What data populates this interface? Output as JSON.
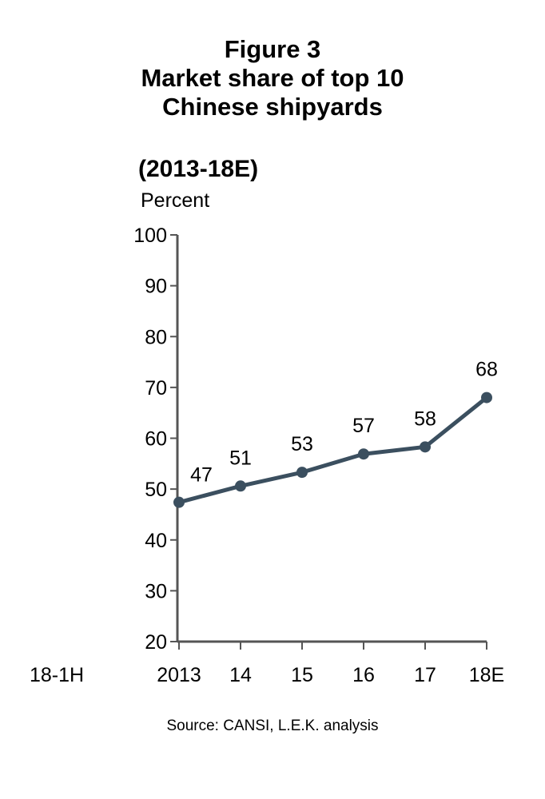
{
  "header": {
    "figure_label": "Figure 3",
    "title_line1": "Market share of top 10",
    "title_line2": "Chinese shipyards",
    "range": "(2013-18E)",
    "unit": "Percent"
  },
  "source": "Source: CANSI, L.E.K. analysis",
  "chart_data": {
    "type": "line",
    "title": "Market share of top 10 Chinese shipyards",
    "subtitle": "(2013-18E)",
    "ylabel": "Percent",
    "xlabel": "",
    "extra_x_label": "18-1H",
    "categories": [
      "2013",
      "14",
      "15",
      "16",
      "17",
      "18E"
    ],
    "series": [
      {
        "values": [
          47.4,
          50.6,
          53.3,
          56.9,
          58.3,
          68.0
        ],
        "labels": [
          "47",
          "51",
          "53",
          "57",
          "58",
          "68"
        ]
      }
    ],
    "ylim": [
      20,
      100
    ],
    "yticks": [
      20,
      30,
      40,
      50,
      60,
      70,
      80,
      90,
      100
    ],
    "grid": false,
    "line_color": "#3b4f5f"
  }
}
